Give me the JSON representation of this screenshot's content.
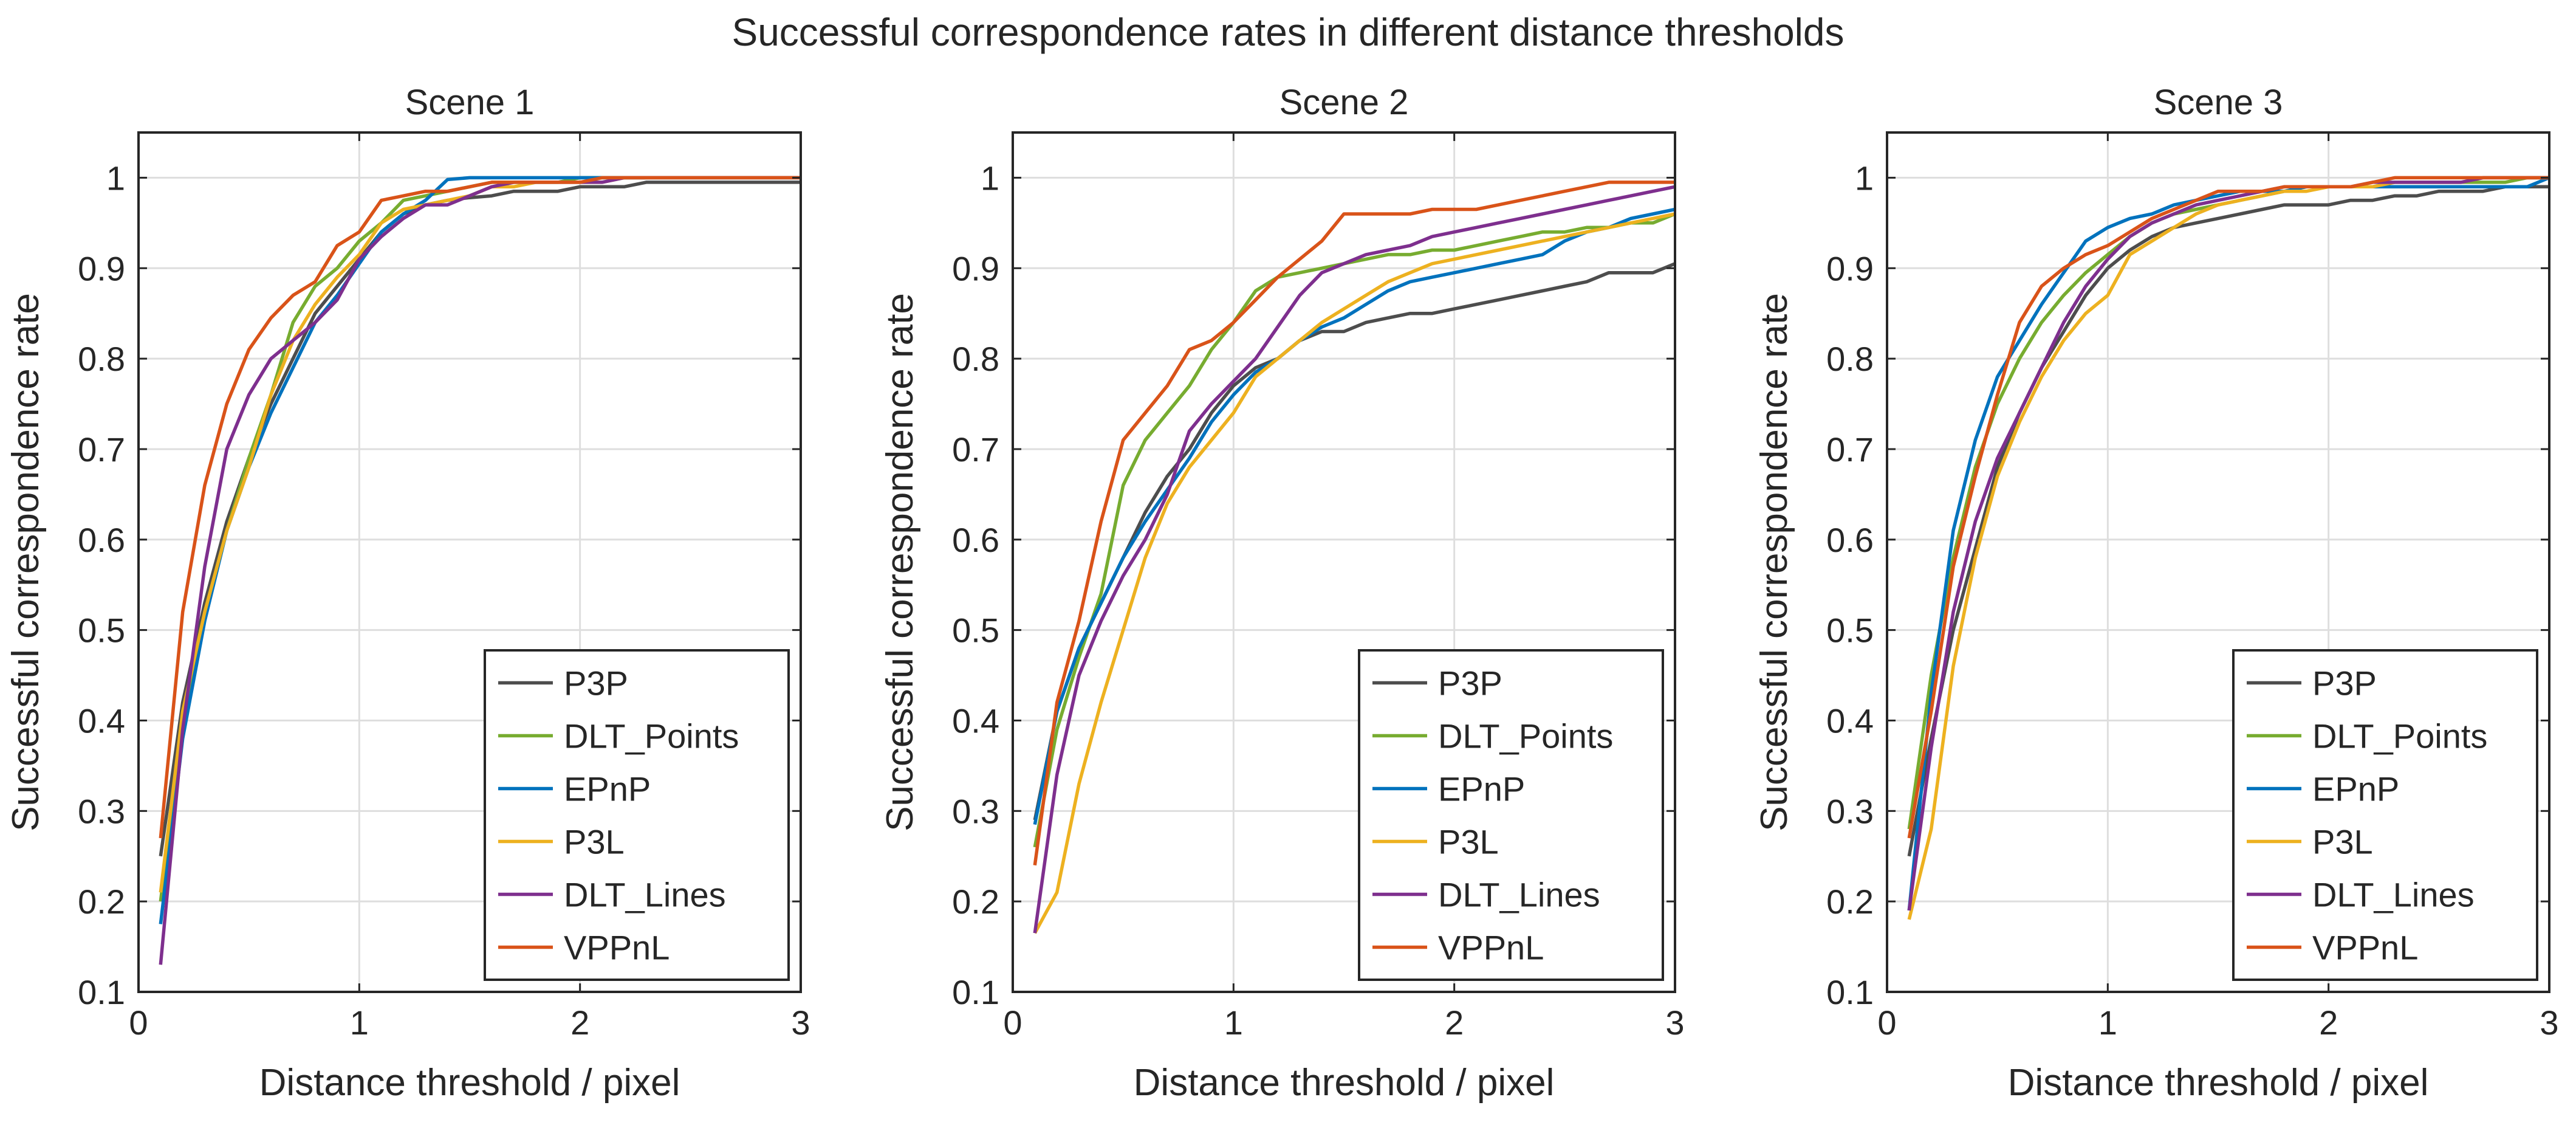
{
  "figure": {
    "title": "Successful correspondence rates in different distance thresholds"
  },
  "colors": {
    "P3P": "#4d4d4d",
    "DLT_Points": "#77ac30",
    "EPnP": "#0072bd",
    "P3L": "#edb120",
    "DLT_Lines": "#7e2f8e",
    "VPPnL": "#d95319"
  },
  "chart_data": [
    {
      "type": "line",
      "title": "Scene 1",
      "xlabel": "Distance threshold / pixel",
      "ylabel": "Successful correspondence rate",
      "xlim": [
        0,
        3
      ],
      "ylim": [
        0.1,
        1.05
      ],
      "xticks": [
        0,
        1,
        2,
        3
      ],
      "yticks": [
        0.1,
        0.2,
        0.3,
        0.4,
        0.5,
        0.6,
        0.7,
        0.8,
        0.9,
        1
      ],
      "grid": true,
      "legend_position": "bottom-right",
      "x": [
        0.1,
        0.2,
        0.3,
        0.4,
        0.5,
        0.6,
        0.7,
        0.8,
        0.9,
        1.0,
        1.1,
        1.2,
        1.3,
        1.4,
        1.5,
        1.6,
        1.7,
        1.8,
        1.9,
        2.0,
        2.1,
        2.2,
        2.3,
        2.4,
        2.5,
        2.6,
        2.7,
        2.8,
        2.9,
        3.0
      ],
      "series": [
        {
          "name": "P3P",
          "values": [
            0.25,
            0.42,
            0.53,
            0.62,
            0.69,
            0.75,
            0.8,
            0.85,
            0.88,
            0.91,
            0.94,
            0.96,
            0.97,
            0.975,
            0.978,
            0.98,
            0.985,
            0.985,
            0.985,
            0.99,
            0.99,
            0.99,
            0.995,
            0.995,
            0.995,
            0.995,
            0.995,
            0.995,
            0.995,
            0.995
          ]
        },
        {
          "name": "DLT_Points",
          "values": [
            0.2,
            0.4,
            0.52,
            0.61,
            0.69,
            0.76,
            0.84,
            0.88,
            0.9,
            0.93,
            0.95,
            0.975,
            0.98,
            0.985,
            0.99,
            0.995,
            0.995,
            0.995,
            0.995,
            1.0,
            1.0,
            1.0,
            1.0,
            1.0,
            1.0,
            1.0,
            1.0,
            1.0,
            1.0,
            1.0
          ]
        },
        {
          "name": "EPnP",
          "values": [
            0.175,
            0.38,
            0.51,
            0.61,
            0.68,
            0.74,
            0.79,
            0.84,
            0.87,
            0.905,
            0.94,
            0.96,
            0.975,
            0.998,
            1.0,
            1.0,
            1.0,
            1.0,
            1.0,
            1.0,
            1.0,
            1.0,
            1.0,
            1.0,
            1.0,
            1.0,
            1.0,
            1.0,
            1.0,
            1.0
          ]
        },
        {
          "name": "P3L",
          "values": [
            0.21,
            0.41,
            0.52,
            0.61,
            0.68,
            0.76,
            0.82,
            0.86,
            0.89,
            0.915,
            0.95,
            0.965,
            0.97,
            0.975,
            0.98,
            0.99,
            0.99,
            0.995,
            0.995,
            0.995,
            0.995,
            1.0,
            1.0,
            1.0,
            1.0,
            1.0,
            1.0,
            1.0,
            1.0,
            1.0
          ]
        },
        {
          "name": "DLT_Lines",
          "values": [
            0.13,
            0.39,
            0.57,
            0.7,
            0.76,
            0.8,
            0.82,
            0.84,
            0.865,
            0.91,
            0.935,
            0.955,
            0.97,
            0.97,
            0.98,
            0.99,
            0.995,
            0.995,
            0.995,
            0.995,
            0.995,
            1.0,
            1.0,
            1.0,
            1.0,
            1.0,
            1.0,
            1.0,
            1.0,
            1.0
          ]
        },
        {
          "name": "VPPnL",
          "values": [
            0.27,
            0.52,
            0.66,
            0.75,
            0.81,
            0.845,
            0.87,
            0.885,
            0.925,
            0.94,
            0.975,
            0.98,
            0.985,
            0.985,
            0.99,
            0.995,
            0.995,
            0.995,
            0.995,
            0.995,
            1.0,
            1.0,
            1.0,
            1.0,
            1.0,
            1.0,
            1.0,
            1.0,
            1.0,
            1.0
          ]
        }
      ]
    },
    {
      "type": "line",
      "title": "Scene 2",
      "xlabel": "Distance threshold / pixel",
      "ylabel": "Successful correspondence rate",
      "xlim": [
        0,
        3
      ],
      "ylim": [
        0.1,
        1.05
      ],
      "xticks": [
        0,
        1,
        2,
        3
      ],
      "yticks": [
        0.1,
        0.2,
        0.3,
        0.4,
        0.5,
        0.6,
        0.7,
        0.8,
        0.9,
        1
      ],
      "grid": true,
      "legend_position": "bottom-right",
      "x": [
        0.1,
        0.2,
        0.3,
        0.4,
        0.5,
        0.6,
        0.7,
        0.8,
        0.9,
        1.0,
        1.1,
        1.2,
        1.3,
        1.4,
        1.5,
        1.6,
        1.7,
        1.8,
        1.9,
        2.0,
        2.1,
        2.2,
        2.3,
        2.4,
        2.5,
        2.6,
        2.7,
        2.8,
        2.9,
        3.0
      ],
      "series": [
        {
          "name": "P3P",
          "values": [
            0.29,
            0.41,
            0.48,
            0.53,
            0.58,
            0.63,
            0.67,
            0.7,
            0.74,
            0.77,
            0.79,
            0.8,
            0.82,
            0.83,
            0.83,
            0.84,
            0.845,
            0.85,
            0.85,
            0.855,
            0.86,
            0.865,
            0.87,
            0.875,
            0.88,
            0.885,
            0.895,
            0.895,
            0.895,
            0.905
          ]
        },
        {
          "name": "DLT_Points",
          "values": [
            0.26,
            0.39,
            0.47,
            0.54,
            0.66,
            0.71,
            0.74,
            0.77,
            0.81,
            0.84,
            0.875,
            0.89,
            0.895,
            0.9,
            0.905,
            0.91,
            0.915,
            0.915,
            0.92,
            0.92,
            0.925,
            0.93,
            0.935,
            0.94,
            0.94,
            0.945,
            0.945,
            0.95,
            0.95,
            0.96
          ]
        },
        {
          "name": "EPnP",
          "values": [
            0.285,
            0.41,
            0.48,
            0.53,
            0.58,
            0.62,
            0.655,
            0.69,
            0.73,
            0.76,
            0.785,
            0.8,
            0.82,
            0.835,
            0.845,
            0.86,
            0.875,
            0.885,
            0.89,
            0.895,
            0.9,
            0.905,
            0.91,
            0.915,
            0.93,
            0.94,
            0.945,
            0.955,
            0.96,
            0.965
          ]
        },
        {
          "name": "P3L",
          "values": [
            0.165,
            0.21,
            0.33,
            0.42,
            0.5,
            0.58,
            0.64,
            0.68,
            0.71,
            0.74,
            0.78,
            0.8,
            0.82,
            0.84,
            0.855,
            0.87,
            0.885,
            0.895,
            0.905,
            0.91,
            0.915,
            0.92,
            0.925,
            0.93,
            0.935,
            0.94,
            0.945,
            0.95,
            0.955,
            0.96
          ]
        },
        {
          "name": "DLT_Lines",
          "values": [
            0.165,
            0.34,
            0.45,
            0.51,
            0.56,
            0.6,
            0.65,
            0.72,
            0.75,
            0.775,
            0.8,
            0.835,
            0.87,
            0.895,
            0.905,
            0.915,
            0.92,
            0.925,
            0.935,
            0.94,
            0.945,
            0.95,
            0.955,
            0.96,
            0.965,
            0.97,
            0.975,
            0.98,
            0.985,
            0.99
          ]
        },
        {
          "name": "VPPnL",
          "values": [
            0.24,
            0.42,
            0.51,
            0.62,
            0.71,
            0.74,
            0.77,
            0.81,
            0.82,
            0.84,
            0.865,
            0.89,
            0.91,
            0.93,
            0.96,
            0.96,
            0.96,
            0.96,
            0.965,
            0.965,
            0.965,
            0.97,
            0.975,
            0.98,
            0.985,
            0.99,
            0.995,
            0.995,
            0.995,
            0.995
          ]
        }
      ]
    },
    {
      "type": "line",
      "title": "Scene 3",
      "xlabel": "Distance threshold / pixel",
      "ylabel": "Successful correspondence rate",
      "xlim": [
        0,
        3
      ],
      "ylim": [
        0.1,
        1.05
      ],
      "xticks": [
        0,
        1,
        2,
        3
      ],
      "yticks": [
        0.1,
        0.2,
        0.3,
        0.4,
        0.5,
        0.6,
        0.7,
        0.8,
        0.9,
        1
      ],
      "grid": true,
      "legend_position": "bottom-right",
      "x": [
        0.1,
        0.2,
        0.3,
        0.4,
        0.5,
        0.6,
        0.7,
        0.8,
        0.9,
        1.0,
        1.1,
        1.2,
        1.3,
        1.4,
        1.5,
        1.6,
        1.7,
        1.8,
        1.9,
        2.0,
        2.1,
        2.2,
        2.3,
        2.4,
        2.5,
        2.6,
        2.7,
        2.8,
        2.9,
        3.0
      ],
      "series": [
        {
          "name": "P3P",
          "values": [
            0.25,
            0.38,
            0.5,
            0.59,
            0.68,
            0.74,
            0.79,
            0.83,
            0.87,
            0.9,
            0.92,
            0.935,
            0.945,
            0.95,
            0.955,
            0.96,
            0.965,
            0.97,
            0.97,
            0.97,
            0.975,
            0.975,
            0.98,
            0.98,
            0.985,
            0.985,
            0.985,
            0.99,
            0.99,
            0.99
          ]
        },
        {
          "name": "DLT_Points",
          "values": [
            0.28,
            0.45,
            0.58,
            0.68,
            0.75,
            0.8,
            0.84,
            0.87,
            0.895,
            0.915,
            0.935,
            0.95,
            0.96,
            0.965,
            0.97,
            0.975,
            0.98,
            0.985,
            0.99,
            0.99,
            0.99,
            0.99,
            0.995,
            0.995,
            0.995,
            0.995,
            0.995,
            0.995,
            1.0,
            1.0
          ]
        },
        {
          "name": "EPnP",
          "values": [
            0.19,
            0.43,
            0.61,
            0.71,
            0.78,
            0.82,
            0.86,
            0.895,
            0.93,
            0.945,
            0.955,
            0.96,
            0.97,
            0.975,
            0.98,
            0.985,
            0.985,
            0.985,
            0.99,
            0.99,
            0.99,
            0.99,
            0.99,
            0.99,
            0.99,
            0.99,
            0.99,
            0.99,
            0.99,
            1.0
          ]
        },
        {
          "name": "P3L",
          "values": [
            0.18,
            0.28,
            0.46,
            0.58,
            0.67,
            0.73,
            0.78,
            0.82,
            0.85,
            0.87,
            0.915,
            0.93,
            0.945,
            0.96,
            0.97,
            0.975,
            0.98,
            0.985,
            0.985,
            0.99,
            0.99,
            0.99,
            0.995,
            0.995,
            0.995,
            0.995,
            1.0,
            1.0,
            1.0,
            1.0
          ]
        },
        {
          "name": "DLT_Lines",
          "values": [
            0.19,
            0.37,
            0.52,
            0.62,
            0.69,
            0.74,
            0.79,
            0.84,
            0.88,
            0.91,
            0.935,
            0.95,
            0.96,
            0.97,
            0.975,
            0.98,
            0.985,
            0.99,
            0.99,
            0.99,
            0.99,
            0.995,
            0.995,
            0.995,
            0.995,
            0.995,
            1.0,
            1.0,
            1.0,
            1.0
          ]
        },
        {
          "name": "VPPnL",
          "values": [
            0.27,
            0.41,
            0.57,
            0.67,
            0.76,
            0.84,
            0.88,
            0.9,
            0.915,
            0.925,
            0.94,
            0.955,
            0.965,
            0.975,
            0.985,
            0.985,
            0.985,
            0.99,
            0.99,
            0.99,
            0.99,
            0.995,
            1.0,
            1.0,
            1.0,
            1.0,
            1.0,
            1.0,
            1.0,
            1.0
          ]
        }
      ]
    }
  ]
}
